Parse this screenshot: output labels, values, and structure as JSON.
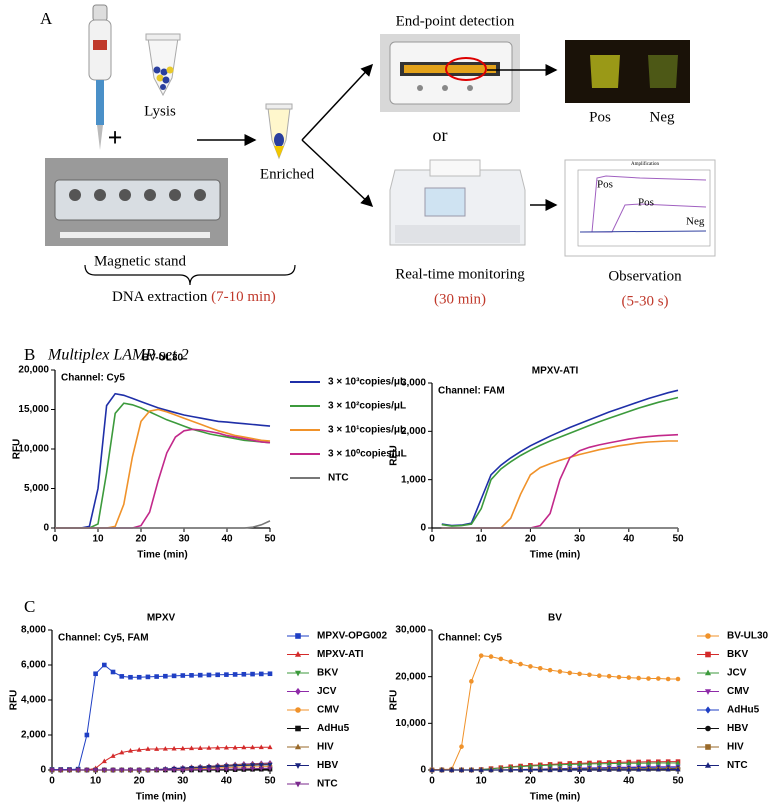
{
  "panel_a": {
    "label": "A",
    "lysis": "Lysis",
    "plus": "+",
    "enriched": "Enriched",
    "endpoint": "End-point detection",
    "or": "or",
    "pos": "Pos",
    "neg": "Neg",
    "realtime": "Real-time monitoring",
    "realtime_time": "(30 min)",
    "observation": "Observation",
    "observation_time": "(5-30 s)",
    "stand": "Magnetic stand",
    "extraction": "DNA extraction",
    "extraction_time": "(7-10 min)",
    "inset": {
      "title": "Amplification",
      "labels": [
        "Pos",
        "Pos",
        "Neg"
      ]
    }
  },
  "panel_labels": {
    "b": "B",
    "b_title": "Multiplex LAMP set 2",
    "c": "C"
  },
  "chart_data": [
    {
      "type": "line",
      "title": "BV-UL30",
      "annotation": "Channel: Cy5",
      "ylabel": "RFU",
      "xlabel": "Time (min)",
      "legend": "right",
      "x": [
        0,
        2,
        4,
        6,
        8,
        10,
        12,
        14,
        16,
        18,
        20,
        22,
        24,
        26,
        28,
        30,
        32,
        34,
        36,
        38,
        40,
        42,
        44,
        46,
        48,
        50
      ],
      "xlim": [
        0,
        50
      ],
      "xticks": [
        0,
        10,
        20,
        30,
        40,
        50
      ],
      "ylim": [
        0,
        20000
      ],
      "yticks": [
        0,
        {
          "value": 5000,
          "label": "5,000"
        },
        {
          "value": 10000,
          "label": "10,000"
        },
        {
          "value": 15000,
          "label": "15,000"
        },
        {
          "value": 20000,
          "label": "20,000"
        }
      ],
      "series": [
        {
          "name": "3 × 10³copies/μL",
          "color": "#1f2fa8",
          "values": [
            0,
            0,
            0,
            0,
            200,
            5000,
            15500,
            17000,
            16800,
            16400,
            16000,
            15600,
            15200,
            14900,
            14600,
            14300,
            14100,
            13900,
            13700,
            13500,
            13400,
            13300,
            13200,
            13100,
            13000,
            12900
          ]
        },
        {
          "name": "3 × 10²copies/μL",
          "color": "#3c9a3c",
          "values": [
            0,
            0,
            0,
            0,
            0,
            500,
            7000,
            14500,
            15800,
            15600,
            15200,
            14700,
            14200,
            13700,
            13300,
            12900,
            12500,
            12200,
            11900,
            11700,
            11500,
            11300,
            11100,
            11000,
            10900,
            10800
          ]
        },
        {
          "name": "3 × 10¹copies/μL",
          "color": "#f0922a",
          "values": [
            0,
            0,
            0,
            0,
            0,
            0,
            0,
            200,
            3000,
            9000,
            13500,
            14800,
            15000,
            14700,
            14300,
            13900,
            13500,
            13100,
            12700,
            12300,
            12000,
            11700,
            11500,
            11300,
            11100,
            11000
          ]
        },
        {
          "name": "3 × 10⁰copies/μL",
          "color": "#c2288a",
          "values": [
            0,
            0,
            0,
            0,
            0,
            0,
            0,
            0,
            0,
            0,
            300,
            2000,
            6000,
            9500,
            11500,
            12300,
            12500,
            12400,
            12200,
            12000,
            11700,
            11500,
            11300,
            11100,
            10900,
            10800
          ]
        },
        {
          "name": "NTC",
          "color": "#777777",
          "values": [
            0,
            0,
            0,
            0,
            0,
            0,
            0,
            0,
            0,
            0,
            0,
            0,
            0,
            0,
            0,
            0,
            0,
            0,
            0,
            0,
            0,
            0,
            0,
            100,
            400,
            900
          ]
        }
      ]
    },
    {
      "type": "line",
      "title": "MPXV-ATI",
      "annotation": "Channel: FAM",
      "ylabel": "RFU",
      "xlabel": "Time (min)",
      "x": [
        0,
        2,
        4,
        6,
        8,
        10,
        12,
        14,
        16,
        18,
        20,
        22,
        24,
        26,
        28,
        30,
        32,
        34,
        36,
        38,
        40,
        42,
        44,
        46,
        48,
        50
      ],
      "xlim": [
        0,
        50
      ],
      "xticks": [
        0,
        10,
        20,
        30,
        40,
        50
      ],
      "ylim": [
        0,
        3000
      ],
      "yticks": [
        0,
        {
          "value": 1000,
          "label": "1,000"
        },
        {
          "value": 2000,
          "label": "2,000"
        },
        {
          "value": 3000,
          "label": "3,000"
        }
      ],
      "series": [
        {
          "color": "#1f2fa8",
          "values": [
            null,
            80,
            50,
            60,
            100,
            600,
            1100,
            1300,
            1450,
            1580,
            1700,
            1800,
            1900,
            1990,
            2080,
            2160,
            2240,
            2320,
            2400,
            2470,
            2540,
            2610,
            2680,
            2740,
            2800,
            2850
          ]
        },
        {
          "color": "#3c9a3c",
          "values": [
            null,
            70,
            40,
            50,
            80,
            400,
            1000,
            1220,
            1370,
            1500,
            1610,
            1710,
            1800,
            1880,
            1960,
            2040,
            2120,
            2200,
            2270,
            2340,
            2410,
            2480,
            2540,
            2600,
            2650,
            2700
          ]
        },
        {
          "color": "#f0922a",
          "values": [
            null,
            0,
            0,
            0,
            0,
            0,
            0,
            0,
            200,
            700,
            1100,
            1250,
            1330,
            1400,
            1460,
            1520,
            1570,
            1620,
            1660,
            1700,
            1730,
            1760,
            1780,
            1790,
            1800,
            1800
          ]
        },
        {
          "color": "#c2288a",
          "values": [
            null,
            0,
            0,
            0,
            0,
            0,
            0,
            0,
            0,
            0,
            0,
            50,
            300,
            1000,
            1450,
            1600,
            1670,
            1720,
            1760,
            1800,
            1840,
            1870,
            1890,
            1910,
            1920,
            1930
          ]
        },
        {
          "color": "#777777",
          "values": [
            null,
            0,
            0,
            0,
            0,
            0,
            0,
            0,
            0,
            0,
            0,
            0,
            0,
            0,
            0,
            0,
            0,
            0,
            0,
            0,
            0,
            0,
            0,
            0,
            0,
            0
          ]
        }
      ]
    },
    {
      "type": "line",
      "title": "MPXV",
      "annotation": "Channel: Cy5, FAM",
      "ylabel": "RFU",
      "xlabel": "Time (min)",
      "legend": "right",
      "x": [
        0,
        2,
        4,
        6,
        8,
        10,
        12,
        14,
        16,
        18,
        20,
        22,
        24,
        26,
        28,
        30,
        32,
        34,
        36,
        38,
        40,
        42,
        44,
        46,
        48,
        50
      ],
      "xlim": [
        0,
        50
      ],
      "xticks": [
        0,
        10,
        20,
        30,
        40,
        50
      ],
      "ylim": [
        0,
        8000
      ],
      "yticks": [
        0,
        {
          "value": 2000,
          "label": "2,000"
        },
        {
          "value": 4000,
          "label": "4,000"
        },
        {
          "value": 6000,
          "label": "6,000"
        },
        {
          "value": 8000,
          "label": "8,000"
        }
      ],
      "series": [
        {
          "name": "MPXV-OPG002",
          "color": "#1f3fc4",
          "marker": "square",
          "values": [
            30,
            30,
            30,
            50,
            2000,
            5500,
            6000,
            5600,
            5350,
            5300,
            5300,
            5320,
            5340,
            5360,
            5380,
            5400,
            5410,
            5420,
            5430,
            5440,
            5450,
            5460,
            5470,
            5480,
            5490,
            5500
          ]
        },
        {
          "name": "MPXV-ATI",
          "color": "#d42a2a",
          "marker": "triangle",
          "values": [
            0,
            0,
            0,
            0,
            0,
            100,
            500,
            800,
            1000,
            1100,
            1150,
            1200,
            1200,
            1210,
            1220,
            1230,
            1240,
            1250,
            1260,
            1270,
            1280,
            1280,
            1290,
            1290,
            1300,
            1300
          ]
        },
        {
          "name": "BKV",
          "color": "#3c9a3c",
          "marker": "triangle-down",
          "values": [
            0,
            0,
            0,
            0,
            0,
            0,
            0,
            0,
            0,
            0,
            0,
            0,
            20,
            40,
            60,
            80,
            100,
            130,
            160,
            190,
            220,
            240,
            260,
            280,
            290,
            300
          ]
        },
        {
          "name": "JCV",
          "color": "#8e2aa8",
          "marker": "diamond",
          "values": [
            0,
            0,
            0,
            0,
            0,
            0,
            0,
            0,
            0,
            0,
            0,
            0,
            30,
            60,
            90,
            120,
            150,
            180,
            210,
            250,
            280,
            310,
            340,
            360,
            380,
            400
          ]
        },
        {
          "name": "CMV",
          "color": "#f0922a",
          "marker": "circle",
          "values": [
            0,
            0,
            0,
            0,
            0,
            0,
            0,
            0,
            0,
            0,
            0,
            0,
            0,
            0,
            20,
            40,
            60,
            80,
            100,
            120,
            140,
            160,
            170,
            180,
            190,
            200
          ]
        },
        {
          "name": "AdHu5",
          "color": "#111111",
          "marker": "square",
          "values": [
            0,
            0,
            0,
            0,
            0,
            0,
            0,
            0,
            0,
            0,
            0,
            0,
            0,
            0,
            0,
            0,
            0,
            0,
            0,
            0,
            10,
            20,
            30,
            40,
            45,
            50
          ]
        },
        {
          "name": "HIV",
          "color": "#9a6a2a",
          "marker": "triangle",
          "values": [
            0,
            0,
            0,
            0,
            0,
            0,
            0,
            0,
            0,
            0,
            0,
            0,
            20,
            50,
            80,
            110,
            140,
            170,
            200,
            230,
            260,
            290,
            310,
            330,
            340,
            350
          ]
        },
        {
          "name": "HBV",
          "color": "#1a237e",
          "marker": "triangle-down",
          "values": [
            0,
            0,
            0,
            0,
            0,
            0,
            0,
            0,
            0,
            0,
            0,
            0,
            20,
            45,
            70,
            95,
            120,
            145,
            170,
            195,
            220,
            245,
            265,
            280,
            290,
            300
          ]
        },
        {
          "name": "NTC",
          "color": "#7b2a8e",
          "marker": "triangle-down",
          "values": [
            0,
            0,
            0,
            0,
            0,
            0,
            0,
            0,
            0,
            0,
            0,
            0,
            0,
            0,
            0,
            0,
            10,
            20,
            30,
            40,
            50,
            60,
            70,
            80,
            90,
            100
          ]
        }
      ]
    },
    {
      "type": "line",
      "title": "BV",
      "annotation": "Channel: Cy5",
      "ylabel": "RFU",
      "xlabel": "Time (min)",
      "legend": "right",
      "x": [
        0,
        2,
        4,
        6,
        8,
        10,
        12,
        14,
        16,
        18,
        20,
        22,
        24,
        26,
        28,
        30,
        32,
        34,
        36,
        38,
        40,
        42,
        44,
        46,
        48,
        50
      ],
      "xlim": [
        0,
        50
      ],
      "xticks": [
        0,
        10,
        20,
        30,
        40,
        50
      ],
      "ylim": [
        0,
        30000
      ],
      "yticks": [
        0,
        {
          "value": 10000,
          "label": "10,000"
        },
        {
          "value": 20000,
          "label": "20,000"
        },
        {
          "value": 30000,
          "label": "30,000"
        }
      ],
      "series": [
        {
          "name": "BV-UL30",
          "color": "#f0922a",
          "marker": "circle",
          "values": [
            100,
            100,
            200,
            5000,
            19000,
            24500,
            24300,
            23800,
            23200,
            22700,
            22200,
            21800,
            21400,
            21100,
            20800,
            20600,
            20400,
            20200,
            20100,
            19900,
            19800,
            19700,
            19600,
            19600,
            19500,
            19500
          ]
        },
        {
          "name": "BKV",
          "color": "#d42a2a",
          "marker": "square",
          "values": [
            0,
            0,
            0,
            0,
            0,
            100,
            300,
            500,
            700,
            850,
            1000,
            1100,
            1200,
            1300,
            1400,
            1450,
            1500,
            1550,
            1600,
            1650,
            1700,
            1720,
            1750,
            1770,
            1790,
            1800
          ]
        },
        {
          "name": "JCV",
          "color": "#3c9a3c",
          "marker": "triangle",
          "values": [
            0,
            0,
            0,
            0,
            0,
            80,
            250,
            420,
            580,
            720,
            850,
            950,
            1050,
            1120,
            1190,
            1250,
            1300,
            1340,
            1380,
            1410,
            1440,
            1460,
            1480,
            1490,
            1500,
            1500
          ]
        },
        {
          "name": "CMV",
          "color": "#8e2aa8",
          "marker": "triangle-down",
          "values": [
            0,
            0,
            0,
            0,
            0,
            0,
            0,
            0,
            50,
            100,
            150,
            200,
            250,
            300,
            350,
            400,
            450,
            500,
            540,
            580,
            610,
            640,
            660,
            680,
            690,
            700
          ]
        },
        {
          "name": "AdHu5",
          "color": "#1f3fc4",
          "marker": "diamond",
          "values": [
            0,
            0,
            0,
            0,
            0,
            0,
            0,
            0,
            40,
            80,
            120,
            160,
            200,
            240,
            280,
            320,
            360,
            400,
            430,
            460,
            490,
            520,
            550,
            570,
            590,
            600
          ]
        },
        {
          "name": "HBV",
          "color": "#111111",
          "marker": "circle",
          "values": [
            0,
            0,
            0,
            0,
            0,
            0,
            0,
            0,
            0,
            0,
            20,
            40,
            60,
            80,
            100,
            120,
            140,
            160,
            180,
            200,
            220,
            240,
            260,
            280,
            290,
            300
          ]
        },
        {
          "name": "HIV",
          "color": "#9a6a2a",
          "marker": "square",
          "values": [
            0,
            0,
            0,
            0,
            0,
            0,
            0,
            0,
            0,
            0,
            0,
            0,
            15,
            30,
            45,
            60,
            75,
            90,
            105,
            120,
            135,
            150,
            165,
            180,
            190,
            200
          ]
        },
        {
          "name": "NTC",
          "color": "#1a237e",
          "marker": "triangle",
          "values": [
            0,
            0,
            0,
            0,
            0,
            0,
            0,
            0,
            0,
            0,
            0,
            0,
            0,
            0,
            10,
            20,
            30,
            40,
            50,
            60,
            70,
            80,
            90,
            95,
            100,
            100
          ]
        }
      ]
    }
  ]
}
